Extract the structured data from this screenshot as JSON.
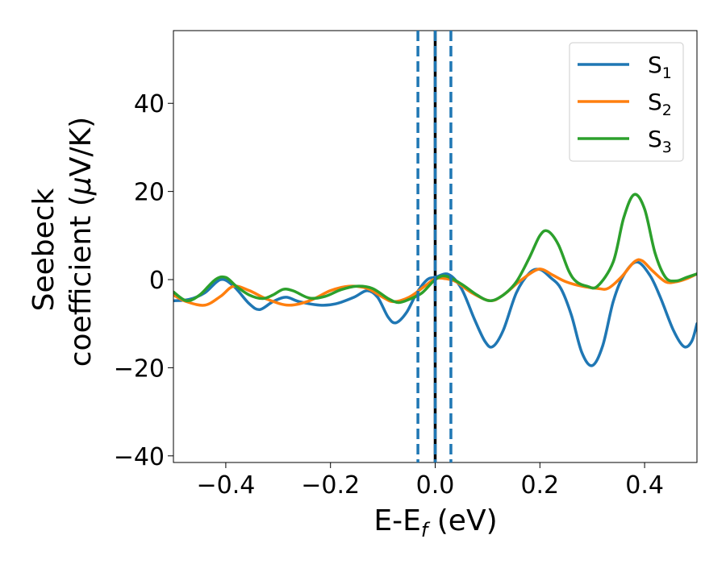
{
  "chart_data": {
    "type": "line",
    "ylabel_line1": "Seebeck",
    "ylabel_line2": "coefficient  (",
    "ylabel_mu": "μ",
    "ylabel_unit": "V/K)",
    "xlabel_main": "E-E",
    "xlabel_sub": "f",
    "xlabel_unit": " (eV)",
    "xlim": [
      -0.5,
      0.5
    ],
    "ylim": [
      -41.5,
      56.5
    ],
    "xticks": [
      {
        "value": -0.4,
        "label": "−0.4"
      },
      {
        "value": -0.2,
        "label": "−0.2"
      },
      {
        "value": 0.0,
        "label": "0.0"
      },
      {
        "value": 0.2,
        "label": "0.2"
      },
      {
        "value": 0.4,
        "label": "0.4"
      }
    ],
    "yticks": [
      {
        "value": -40,
        "label": "−40"
      },
      {
        "value": -20,
        "label": "−20"
      },
      {
        "value": 0,
        "label": "0"
      },
      {
        "value": 20,
        "label": "20"
      },
      {
        "value": 40,
        "label": "40"
      }
    ],
    "vlines": [
      {
        "x": -0.033,
        "style": "dashed",
        "color": "#1f77b4"
      },
      {
        "x": 0.0,
        "style": "solid",
        "color": "#000000"
      },
      {
        "x": 0.0,
        "style": "dashed",
        "color": "#1f77b4"
      },
      {
        "x": 0.03,
        "style": "dashed",
        "color": "#1f77b4"
      }
    ],
    "legend_position": "top-right",
    "grid": false,
    "series": [
      {
        "name": "S",
        "sub": "1",
        "color": "#1f77b4",
        "points": [
          [
            -0.5,
            -4.8
          ],
          [
            -0.47,
            -4.5
          ],
          [
            -0.44,
            -3.0
          ],
          [
            -0.41,
            0.0
          ],
          [
            -0.385,
            -1.5
          ],
          [
            -0.355,
            -5.5
          ],
          [
            -0.335,
            -6.8
          ],
          [
            -0.31,
            -5.0
          ],
          [
            -0.285,
            -4.0
          ],
          [
            -0.26,
            -5.0
          ],
          [
            -0.22,
            -5.8
          ],
          [
            -0.19,
            -5.5
          ],
          [
            -0.155,
            -4.0
          ],
          [
            -0.13,
            -2.5
          ],
          [
            -0.11,
            -4.0
          ],
          [
            -0.09,
            -8.5
          ],
          [
            -0.075,
            -9.8
          ],
          [
            -0.055,
            -7.5
          ],
          [
            -0.035,
            -3.0
          ],
          [
            -0.015,
            0.0
          ],
          [
            0.0,
            0.5
          ],
          [
            0.025,
            1.2
          ],
          [
            0.05,
            -2.0
          ],
          [
            0.075,
            -9.0
          ],
          [
            0.095,
            -14.0
          ],
          [
            0.11,
            -15.2
          ],
          [
            0.13,
            -11.5
          ],
          [
            0.155,
            -3.0
          ],
          [
            0.18,
            1.5
          ],
          [
            0.2,
            2.3
          ],
          [
            0.22,
            0.5
          ],
          [
            0.24,
            -2.0
          ],
          [
            0.26,
            -8.0
          ],
          [
            0.28,
            -16.5
          ],
          [
            0.3,
            -19.5
          ],
          [
            0.32,
            -15.0
          ],
          [
            0.34,
            -5.0
          ],
          [
            0.36,
            1.0
          ],
          [
            0.385,
            4.0
          ],
          [
            0.41,
            1.0
          ],
          [
            0.43,
            -4.0
          ],
          [
            0.455,
            -11.5
          ],
          [
            0.475,
            -15.2
          ],
          [
            0.49,
            -14.0
          ],
          [
            0.5,
            -10.0
          ]
        ]
      },
      {
        "name": "S",
        "sub": "2",
        "color": "#ff7f0e",
        "points": [
          [
            -0.5,
            -3.5
          ],
          [
            -0.475,
            -5.0
          ],
          [
            -0.44,
            -5.8
          ],
          [
            -0.41,
            -3.8
          ],
          [
            -0.385,
            -1.5
          ],
          [
            -0.355,
            -2.5
          ],
          [
            -0.32,
            -4.5
          ],
          [
            -0.28,
            -5.8
          ],
          [
            -0.24,
            -4.8
          ],
          [
            -0.2,
            -2.5
          ],
          [
            -0.165,
            -1.5
          ],
          [
            -0.13,
            -2.0
          ],
          [
            -0.1,
            -4.0
          ],
          [
            -0.08,
            -5.0
          ],
          [
            -0.05,
            -4.0
          ],
          [
            -0.02,
            -1.5
          ],
          [
            0.0,
            0.2
          ],
          [
            0.02,
            0.2
          ],
          [
            0.04,
            -0.5
          ],
          [
            0.07,
            -3.0
          ],
          [
            0.105,
            -4.8
          ],
          [
            0.13,
            -3.5
          ],
          [
            0.16,
            -0.5
          ],
          [
            0.19,
            2.0
          ],
          [
            0.205,
            2.3
          ],
          [
            0.225,
            1.0
          ],
          [
            0.25,
            -0.5
          ],
          [
            0.28,
            -1.5
          ],
          [
            0.31,
            -2.0
          ],
          [
            0.33,
            -2.0
          ],
          [
            0.355,
            0.5
          ],
          [
            0.38,
            4.0
          ],
          [
            0.395,
            4.3
          ],
          [
            0.415,
            2.0
          ],
          [
            0.44,
            -0.5
          ],
          [
            0.46,
            -0.5
          ],
          [
            0.48,
            0.2
          ],
          [
            0.5,
            1.3
          ]
        ]
      },
      {
        "name": "S",
        "sub": "3",
        "color": "#2ca02c",
        "points": [
          [
            -0.5,
            -2.8
          ],
          [
            -0.475,
            -4.8
          ],
          [
            -0.45,
            -3.5
          ],
          [
            -0.42,
            0.0
          ],
          [
            -0.4,
            0.5
          ],
          [
            -0.38,
            -1.5
          ],
          [
            -0.355,
            -3.5
          ],
          [
            -0.33,
            -4.3
          ],
          [
            -0.31,
            -3.5
          ],
          [
            -0.29,
            -2.2
          ],
          [
            -0.27,
            -2.6
          ],
          [
            -0.24,
            -4.2
          ],
          [
            -0.21,
            -3.8
          ],
          [
            -0.18,
            -2.3
          ],
          [
            -0.15,
            -1.5
          ],
          [
            -0.12,
            -2.0
          ],
          [
            -0.09,
            -4.3
          ],
          [
            -0.07,
            -5.2
          ],
          [
            -0.05,
            -4.5
          ],
          [
            -0.025,
            -3.0
          ],
          [
            0.0,
            0.0
          ],
          [
            0.02,
            0.8
          ],
          [
            0.05,
            -1.0
          ],
          [
            0.08,
            -3.5
          ],
          [
            0.105,
            -4.8
          ],
          [
            0.13,
            -3.5
          ],
          [
            0.155,
            -0.5
          ],
          [
            0.18,
            5.0
          ],
          [
            0.2,
            10.0
          ],
          [
            0.215,
            11.0
          ],
          [
            0.235,
            8.0
          ],
          [
            0.255,
            2.0
          ],
          [
            0.27,
            -0.5
          ],
          [
            0.29,
            -1.5
          ],
          [
            0.31,
            -1.5
          ],
          [
            0.34,
            4.0
          ],
          [
            0.36,
            14.0
          ],
          [
            0.38,
            19.3
          ],
          [
            0.4,
            16.0
          ],
          [
            0.42,
            6.0
          ],
          [
            0.44,
            0.5
          ],
          [
            0.46,
            -0.3
          ],
          [
            0.48,
            0.5
          ],
          [
            0.5,
            1.3
          ]
        ]
      }
    ]
  }
}
